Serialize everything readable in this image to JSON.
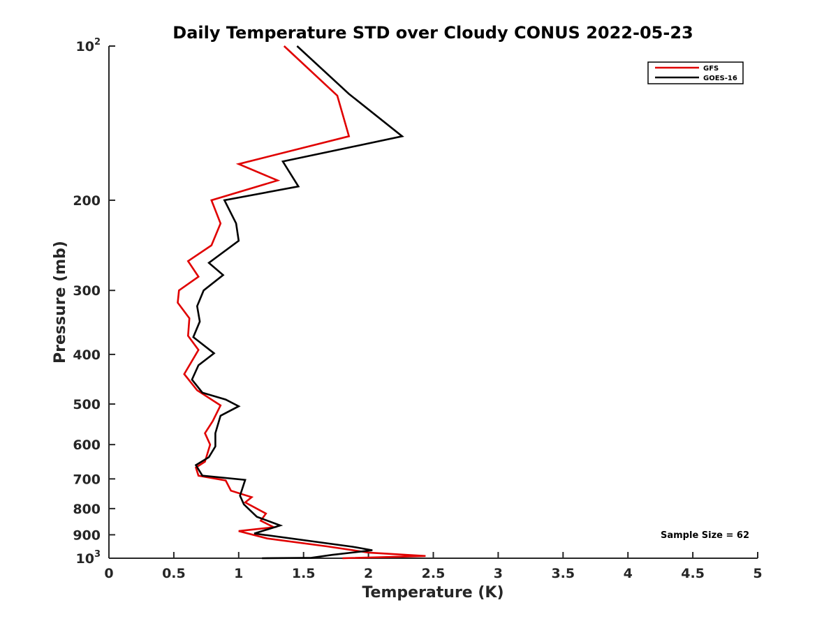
{
  "chart_data": {
    "type": "line",
    "title": "Daily Temperature STD over Cloudy CONUS 2022-05-23",
    "xlabel": "Temperature (K)",
    "ylabel": "Pressure (mb)",
    "xlim": [
      0,
      5
    ],
    "ylim": [
      100,
      1000
    ],
    "yscale": "log",
    "y_reversed": true,
    "grid": false,
    "legend_position": "top-right",
    "x_ticks": [
      "0",
      "0.5",
      "1",
      "1.5",
      "2",
      "2.5",
      "3",
      "3.5",
      "4",
      "4.5",
      "5"
    ],
    "y_ticks": [
      {
        "value": 100,
        "label": "10",
        "sup": "2"
      },
      {
        "value": 200,
        "label": "200",
        "sup": ""
      },
      {
        "value": 300,
        "label": "300",
        "sup": ""
      },
      {
        "value": 400,
        "label": "400",
        "sup": ""
      },
      {
        "value": 500,
        "label": "500",
        "sup": ""
      },
      {
        "value": 600,
        "label": "600",
        "sup": ""
      },
      {
        "value": 700,
        "label": "700",
        "sup": ""
      },
      {
        "value": 800,
        "label": "800",
        "sup": ""
      },
      {
        "value": 900,
        "label": "900",
        "sup": ""
      },
      {
        "value": 1000,
        "label": "10",
        "sup": "3"
      }
    ],
    "annotation": "Sample Size = 62",
    "series": [
      {
        "name": "GFS",
        "color": "#e00000",
        "points": [
          [
            1.35,
            100
          ],
          [
            1.76,
            125
          ],
          [
            1.85,
            150
          ],
          [
            1.0,
            170
          ],
          [
            1.3,
            183
          ],
          [
            0.79,
            200
          ],
          [
            0.86,
            222
          ],
          [
            0.79,
            245
          ],
          [
            0.61,
            263
          ],
          [
            0.69,
            282
          ],
          [
            0.54,
            300
          ],
          [
            0.53,
            317
          ],
          [
            0.62,
            340
          ],
          [
            0.61,
            368
          ],
          [
            0.69,
            392
          ],
          [
            0.58,
            437
          ],
          [
            0.68,
            470
          ],
          [
            0.86,
            503
          ],
          [
            0.8,
            540
          ],
          [
            0.74,
            570
          ],
          [
            0.78,
            600
          ],
          [
            0.74,
            648
          ],
          [
            0.67,
            665
          ],
          [
            0.69,
            690
          ],
          [
            0.9,
            705
          ],
          [
            0.94,
            738
          ],
          [
            1.1,
            760
          ],
          [
            1.05,
            778
          ],
          [
            1.21,
            818
          ],
          [
            1.17,
            845
          ],
          [
            1.27,
            870
          ],
          [
            1.0,
            885
          ],
          [
            1.22,
            915
          ],
          [
            1.68,
            948
          ],
          [
            2.0,
            975
          ],
          [
            2.44,
            990
          ],
          [
            1.8,
            1000
          ]
        ]
      },
      {
        "name": "GOES-16",
        "color": "#000000",
        "points": [
          [
            1.45,
            100
          ],
          [
            1.85,
            124
          ],
          [
            2.26,
            150
          ],
          [
            1.34,
            168
          ],
          [
            1.46,
            188
          ],
          [
            0.89,
            200
          ],
          [
            0.98,
            222
          ],
          [
            1.0,
            240
          ],
          [
            0.77,
            265
          ],
          [
            0.88,
            280
          ],
          [
            0.73,
            300
          ],
          [
            0.68,
            322
          ],
          [
            0.7,
            345
          ],
          [
            0.65,
            370
          ],
          [
            0.81,
            398
          ],
          [
            0.69,
            420
          ],
          [
            0.64,
            448
          ],
          [
            0.72,
            475
          ],
          [
            0.9,
            490
          ],
          [
            1.0,
            505
          ],
          [
            0.86,
            527
          ],
          [
            0.82,
            570
          ],
          [
            0.82,
            605
          ],
          [
            0.77,
            635
          ],
          [
            0.67,
            658
          ],
          [
            0.72,
            690
          ],
          [
            1.05,
            703
          ],
          [
            1.01,
            755
          ],
          [
            1.04,
            785
          ],
          [
            1.14,
            830
          ],
          [
            1.32,
            863
          ],
          [
            1.12,
            895
          ],
          [
            1.88,
            950
          ],
          [
            2.03,
            965
          ],
          [
            1.72,
            985
          ],
          [
            1.56,
            998
          ],
          [
            1.18,
            1000
          ]
        ]
      }
    ]
  }
}
